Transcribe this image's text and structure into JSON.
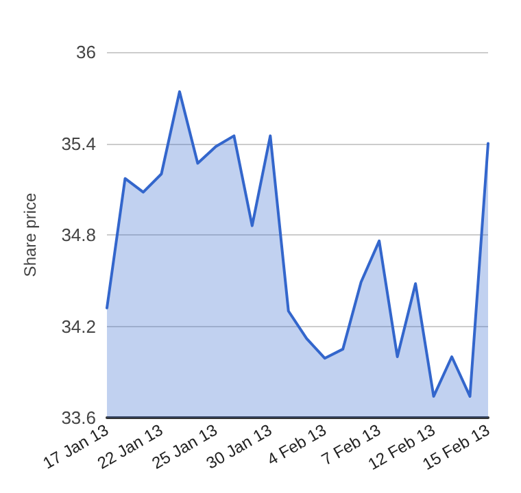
{
  "chart_data": {
    "type": "area",
    "ylabel": "Share price",
    "categories": [
      "17 Jan 13",
      null,
      null,
      "22 Jan 13",
      null,
      null,
      "25 Jan 13",
      null,
      null,
      "30 Jan 13",
      null,
      null,
      "4 Feb 13",
      null,
      null,
      "7 Feb 13",
      null,
      null,
      "12 Feb 13",
      null,
      null,
      "15 Feb 13"
    ],
    "series": [
      {
        "color": "#3366cc",
        "values": [
          34.32,
          35.17,
          35.08,
          35.2,
          35.74,
          35.27,
          35.38,
          35.45,
          34.86,
          35.45,
          34.3,
          34.12,
          33.99,
          34.05,
          34.49,
          34.76,
          34.0,
          34.48,
          33.74,
          34.0,
          33.74,
          35.4
        ]
      }
    ],
    "ylim": [
      33.6,
      36
    ],
    "yticks": [
      33.6,
      34.2,
      34.8,
      35.4,
      36
    ],
    "grid": "y",
    "marker": "none",
    "line_style": "solid"
  }
}
